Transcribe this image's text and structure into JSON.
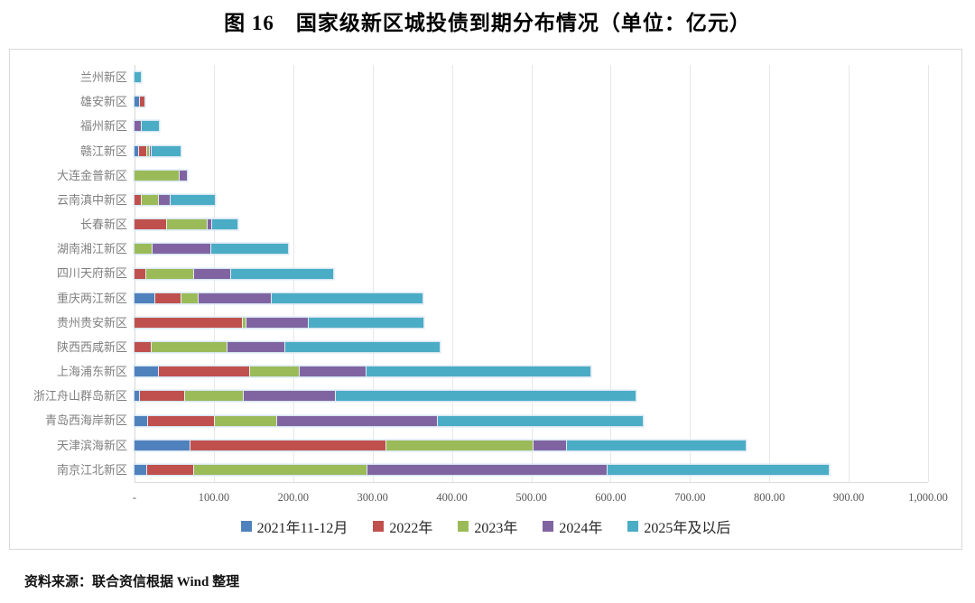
{
  "title": "图 16　国家级新区城投债到期分布情况（单位：亿元）",
  "source_note": "资料来源：联合资信根据 Wind 整理",
  "chart_data": {
    "type": "bar",
    "orientation": "horizontal",
    "stacked": true,
    "unit": "亿元",
    "title": "图 16　国家级新区城投债到期分布情况（单位：亿元）",
    "xlabel": "",
    "ylabel": "",
    "xlim": [
      0,
      1000
    ],
    "grid": true,
    "legend_position": "bottom",
    "x_ticks": [
      "-",
      "100.00",
      "200.00",
      "300.00",
      "400.00",
      "500.00",
      "600.00",
      "700.00",
      "800.00",
      "900.00",
      "1,000.00"
    ],
    "categories": [
      "兰州新区",
      "雄安新区",
      "福州新区",
      "赣江新区",
      "大连金普新区",
      "云南滇中新区",
      "长春新区",
      "湖南湘江新区",
      "四川天府新区",
      "重庆两江新区",
      "贵州贵安新区",
      "陕西西咸新区",
      "上海浦东新区",
      "浙江舟山群岛新区",
      "青岛西海岸新区",
      "天津滨海新区",
      "南京江北新区"
    ],
    "series": [
      {
        "name": "2021年11-12月",
        "color": "#4F81BD",
        "values": [
          0,
          6,
          0,
          4,
          0,
          0,
          0,
          0,
          0,
          25,
          0,
          0,
          29,
          6,
          16,
          69,
          15
        ]
      },
      {
        "name": "2022年",
        "color": "#C0504D",
        "values": [
          0,
          6,
          0,
          11,
          0,
          8,
          40,
          0,
          14,
          33,
          135,
          20,
          115,
          57,
          84,
          247,
          59
        ]
      },
      {
        "name": "2023年",
        "color": "#9BBB59",
        "values": [
          0,
          0,
          0,
          3,
          56,
          22,
          51,
          21,
          60,
          22,
          5,
          96,
          63,
          73,
          79,
          186,
          218
        ]
      },
      {
        "name": "2024年",
        "color": "#8064A2",
        "values": [
          0,
          0,
          8,
          3,
          10,
          14,
          6,
          75,
          47,
          92,
          79,
          73,
          84,
          117,
          202,
          42,
          303
        ]
      },
      {
        "name": "2025年及以后",
        "color": "#4BACC6",
        "values": [
          8,
          0,
          23,
          37,
          0,
          57,
          33,
          98,
          129,
          191,
          145,
          195,
          284,
          378,
          259,
          226,
          280
        ]
      }
    ]
  }
}
